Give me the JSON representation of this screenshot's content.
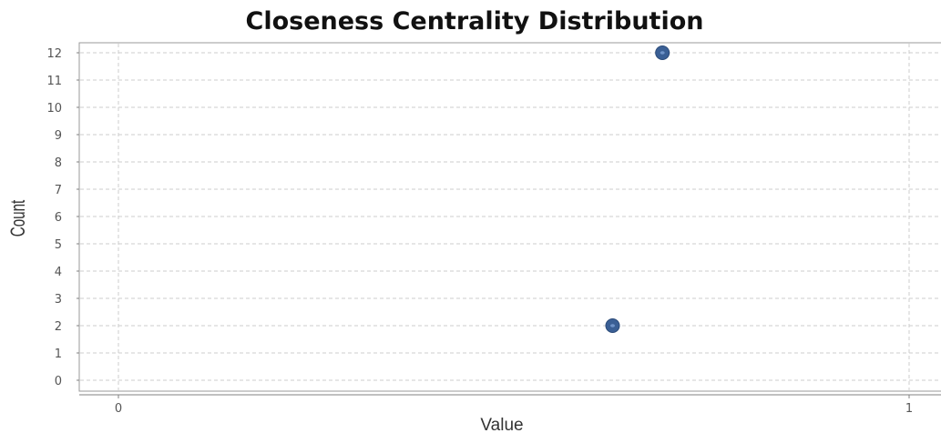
{
  "chart_data": {
    "type": "scatter",
    "title": "Closeness Centrality Distribution",
    "xlabel": "Value",
    "ylabel": "Count",
    "xlim": [
      0,
      1
    ],
    "ylim": [
      0,
      12
    ],
    "x_ticks": [
      "0",
      "1"
    ],
    "y_ticks": [
      "0",
      "1",
      "2",
      "3",
      "4",
      "5",
      "6",
      "7",
      "8",
      "9",
      "10",
      "11",
      "12"
    ],
    "grid": true,
    "series": [
      {
        "points": [
          {
            "x": 0.625,
            "y": 2
          },
          {
            "x": 0.688,
            "y": 12
          }
        ]
      }
    ],
    "colors": {
      "point": "#3a5f95",
      "point_highlight": "#6f93c8",
      "grid": "#cccccc",
      "axis": "#808080"
    }
  }
}
